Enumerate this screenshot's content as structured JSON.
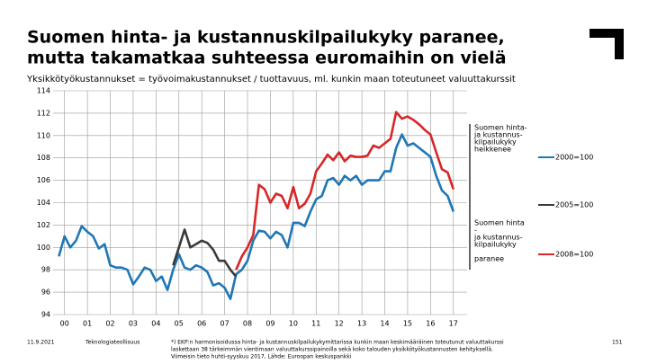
{
  "chart_data": {
    "type": "line",
    "title": [
      "Suomen hinta- ja kustannuskilpailukyky paranee,",
      "mutta takamatkaa suhteessa euromaihin on vielä"
    ],
    "subtitle": "Yksikkötyökustannukset = työvoimakustannukset / tuottavuus, ml. kunkin maan toteutuneet valuuttakurssit",
    "annotations": [
      "Suomen hinta-",
      "ja kustannus-",
      "kilpailukyky",
      "heikkenee",
      "Suomen hinta",
      "-",
      "ja kustannus-",
      "kilpailukyky",
      "paranee"
    ],
    "footer": {
      "date": "11.9.2021",
      "org": "Teknologiateollisuus",
      "note": [
        "*) EKP:n harmonisoidussa hinta- ja kustannuskilpailukykymittarissa kunkin maan keskimääräinen toteutunut valuuttakurssi",
        "laskettaan 38 tärkeimmän vientimaan valuuttakurssipainoilla sekä koko talouden yksikkötyökustannusten kehityksellä.",
        "Viimeisin tieto huhti-syyskuu 2017, Lähde: Euroopan keskuspankki"
      ],
      "page": "151"
    },
    "xlim": [
      1999.5,
      2017.6
    ],
    "xticks": [
      {
        "value": 2000,
        "label": "00"
      },
      {
        "value": 2001,
        "label": "01"
      },
      {
        "value": 2002,
        "label": "02"
      },
      {
        "value": 2003,
        "label": "03"
      },
      {
        "value": 2004,
        "label": "04"
      },
      {
        "value": 2005,
        "label": "05"
      },
      {
        "value": 2006,
        "label": "06"
      },
      {
        "value": 2007,
        "label": "07"
      },
      {
        "value": 2008,
        "label": "08"
      },
      {
        "value": 2009,
        "label": "09"
      },
      {
        "value": 2010,
        "label": "10"
      },
      {
        "value": 2011,
        "label": "11"
      },
      {
        "value": 2012,
        "label": "12"
      },
      {
        "value": 2013,
        "label": "13"
      },
      {
        "value": 2014,
        "label": "14"
      },
      {
        "value": 2015,
        "label": "15"
      },
      {
        "value": 2016,
        "label": "16"
      },
      {
        "value": 2017,
        "label": "17"
      }
    ],
    "ylim": [
      94,
      114
    ],
    "yticks": [
      94,
      96,
      98,
      100,
      102,
      104,
      106,
      108,
      110,
      112,
      114
    ],
    "grid": true,
    "series": [
      {
        "name": "2000=100",
        "color": "#1f77b4",
        "x": [
          1999.75,
          2000,
          2000.25,
          2000.5,
          2000.75,
          2001,
          2001.25,
          2001.5,
          2001.75,
          2002,
          2002.25,
          2002.5,
          2002.75,
          2003,
          2003.25,
          2003.5,
          2003.75,
          2004,
          2004.25,
          2004.5,
          2004.75,
          2005,
          2005.25,
          2005.5,
          2005.75,
          2006,
          2006.25,
          2006.5,
          2006.75,
          2007,
          2007.25,
          2007.5,
          2007.75,
          2008,
          2008.25,
          2008.5,
          2008.75,
          2009,
          2009.25,
          2009.5,
          2009.75,
          2010,
          2010.25,
          2010.5,
          2010.75,
          2011,
          2011.25,
          2011.5,
          2011.75,
          2012,
          2012.25,
          2012.5,
          2012.75,
          2013,
          2013.25,
          2013.5,
          2013.75,
          2014,
          2014.25,
          2014.5,
          2014.75,
          2015,
          2015.25,
          2015.5,
          2015.75,
          2016,
          2016.25,
          2016.5,
          2016.75,
          2017
        ],
        "values": [
          99.2,
          101.0,
          100.0,
          100.6,
          101.9,
          101.4,
          101.0,
          99.9,
          100.3,
          98.4,
          98.2,
          98.2,
          98.0,
          96.7,
          97.4,
          98.2,
          98.0,
          97.0,
          97.4,
          96.2,
          98.0,
          99.4,
          98.2,
          98.0,
          98.4,
          98.2,
          97.8,
          96.6,
          96.8,
          96.4,
          95.4,
          97.6,
          98.0,
          98.8,
          100.6,
          101.5,
          101.4,
          100.8,
          101.4,
          101.1,
          100.0,
          102.2,
          102.2,
          101.9,
          103.2,
          104.3,
          104.6,
          106.0,
          106.2,
          105.6,
          106.4,
          106.0,
          106.4,
          105.6,
          106.0,
          106.0,
          106.0,
          106.8,
          106.8,
          108.9,
          110.1,
          109.1,
          109.3,
          108.9,
          108.5,
          108.1,
          106.4,
          105.1,
          104.6,
          103.2
        ]
      },
      {
        "name": "2005=100",
        "color": "#3a3a3a",
        "x": [
          2004.75,
          2005,
          2005.25,
          2005.5,
          2005.75,
          2006,
          2006.25,
          2006.5,
          2006.75,
          2007,
          2007.25,
          2007.5
        ],
        "values": [
          98.4,
          100.0,
          101.6,
          100.0,
          100.3,
          100.6,
          100.4,
          99.8,
          98.8,
          98.8,
          98.0,
          97.4
        ]
      },
      {
        "name": "2008=100",
        "color": "#d62728",
        "x": [
          2007.5,
          2007.75,
          2008,
          2008.25,
          2008.5,
          2008.75,
          2009,
          2009.25,
          2009.5,
          2009.75,
          2010,
          2010.25,
          2010.5,
          2010.75,
          2011,
          2011.25,
          2011.5,
          2011.75,
          2012,
          2012.25,
          2012.5,
          2012.75,
          2013,
          2013.25,
          2013.5,
          2013.75,
          2014,
          2014.25,
          2014.5,
          2014.75,
          2015,
          2015.25,
          2015.5,
          2015.75,
          2016,
          2016.25,
          2016.5,
          2016.75,
          2017
        ],
        "values": [
          98.0,
          99.2,
          100.0,
          101.1,
          105.6,
          105.2,
          104.0,
          104.8,
          104.6,
          103.5,
          105.4,
          103.5,
          103.9,
          104.8,
          106.8,
          107.5,
          108.3,
          107.8,
          108.5,
          107.7,
          108.2,
          108.1,
          108.1,
          108.2,
          109.1,
          108.9,
          109.3,
          109.7,
          112.1,
          111.5,
          111.7,
          111.4,
          111.0,
          110.5,
          110.1,
          108.5,
          107.0,
          106.7,
          105.2
        ]
      }
    ]
  }
}
